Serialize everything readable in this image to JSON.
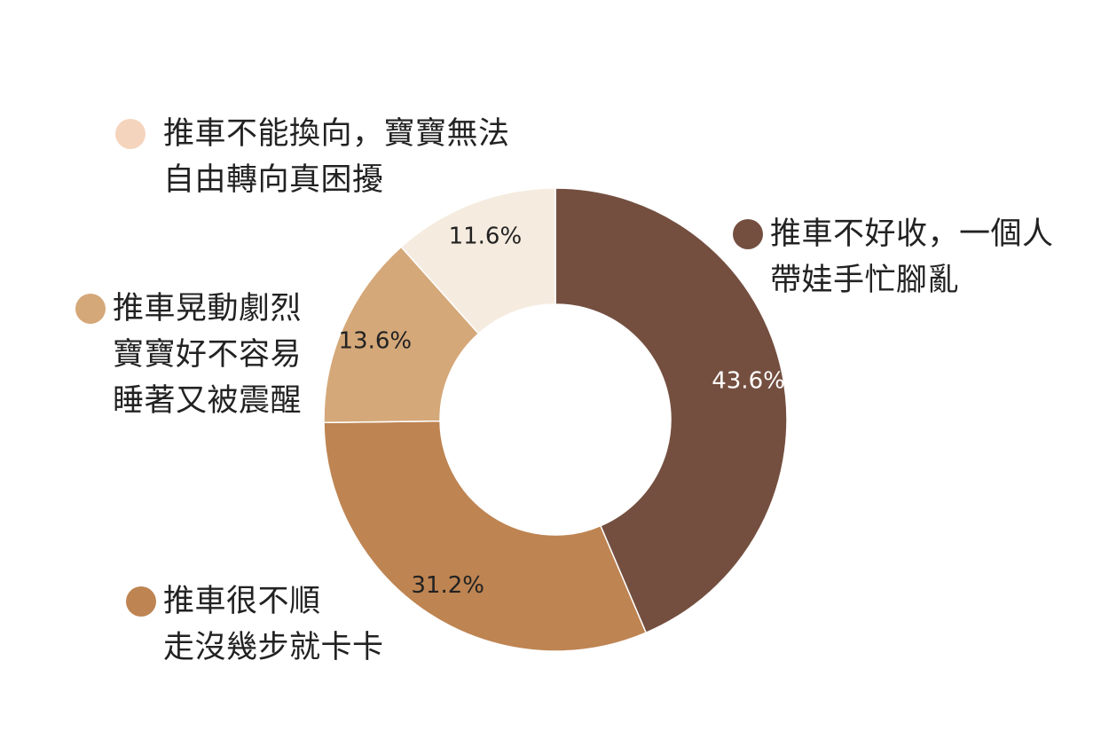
{
  "chart_data": {
    "type": "pie",
    "title": "",
    "donut": true,
    "legend_placement": "outside-slices",
    "slices": [
      {
        "label_lines": [
          "推車不好收，一個人",
          "帶娃手忙腳亂"
        ],
        "value": 43.6,
        "value_label": "43.6%",
        "color": "#744F40",
        "value_label_color": "#FFFFFF"
      },
      {
        "label_lines": [
          "推車很不順",
          "走沒幾步就卡卡"
        ],
        "value": 31.2,
        "value_label": "31.2%",
        "color": "#BE8452",
        "value_label_color": "#222222"
      },
      {
        "label_lines": [
          "推車晃動劇烈",
          "寶寶好不容易",
          "睡著又被震醒"
        ],
        "value": 13.6,
        "value_label": "13.6%",
        "color": "#D5A879",
        "value_label_color": "#222222"
      },
      {
        "label_lines": [
          "推車不能換向，寶寶無法",
          "自由轉向真困擾"
        ],
        "value": 11.6,
        "value_label": "11.6%",
        "color": "#F5EBDF",
        "value_label_color": "#222222"
      }
    ]
  },
  "legend_dot_colors": {
    "slice_0": "#744F40",
    "slice_1": "#BE8452",
    "slice_2": "#D5A879",
    "slice_3": "#F5D4BD"
  }
}
